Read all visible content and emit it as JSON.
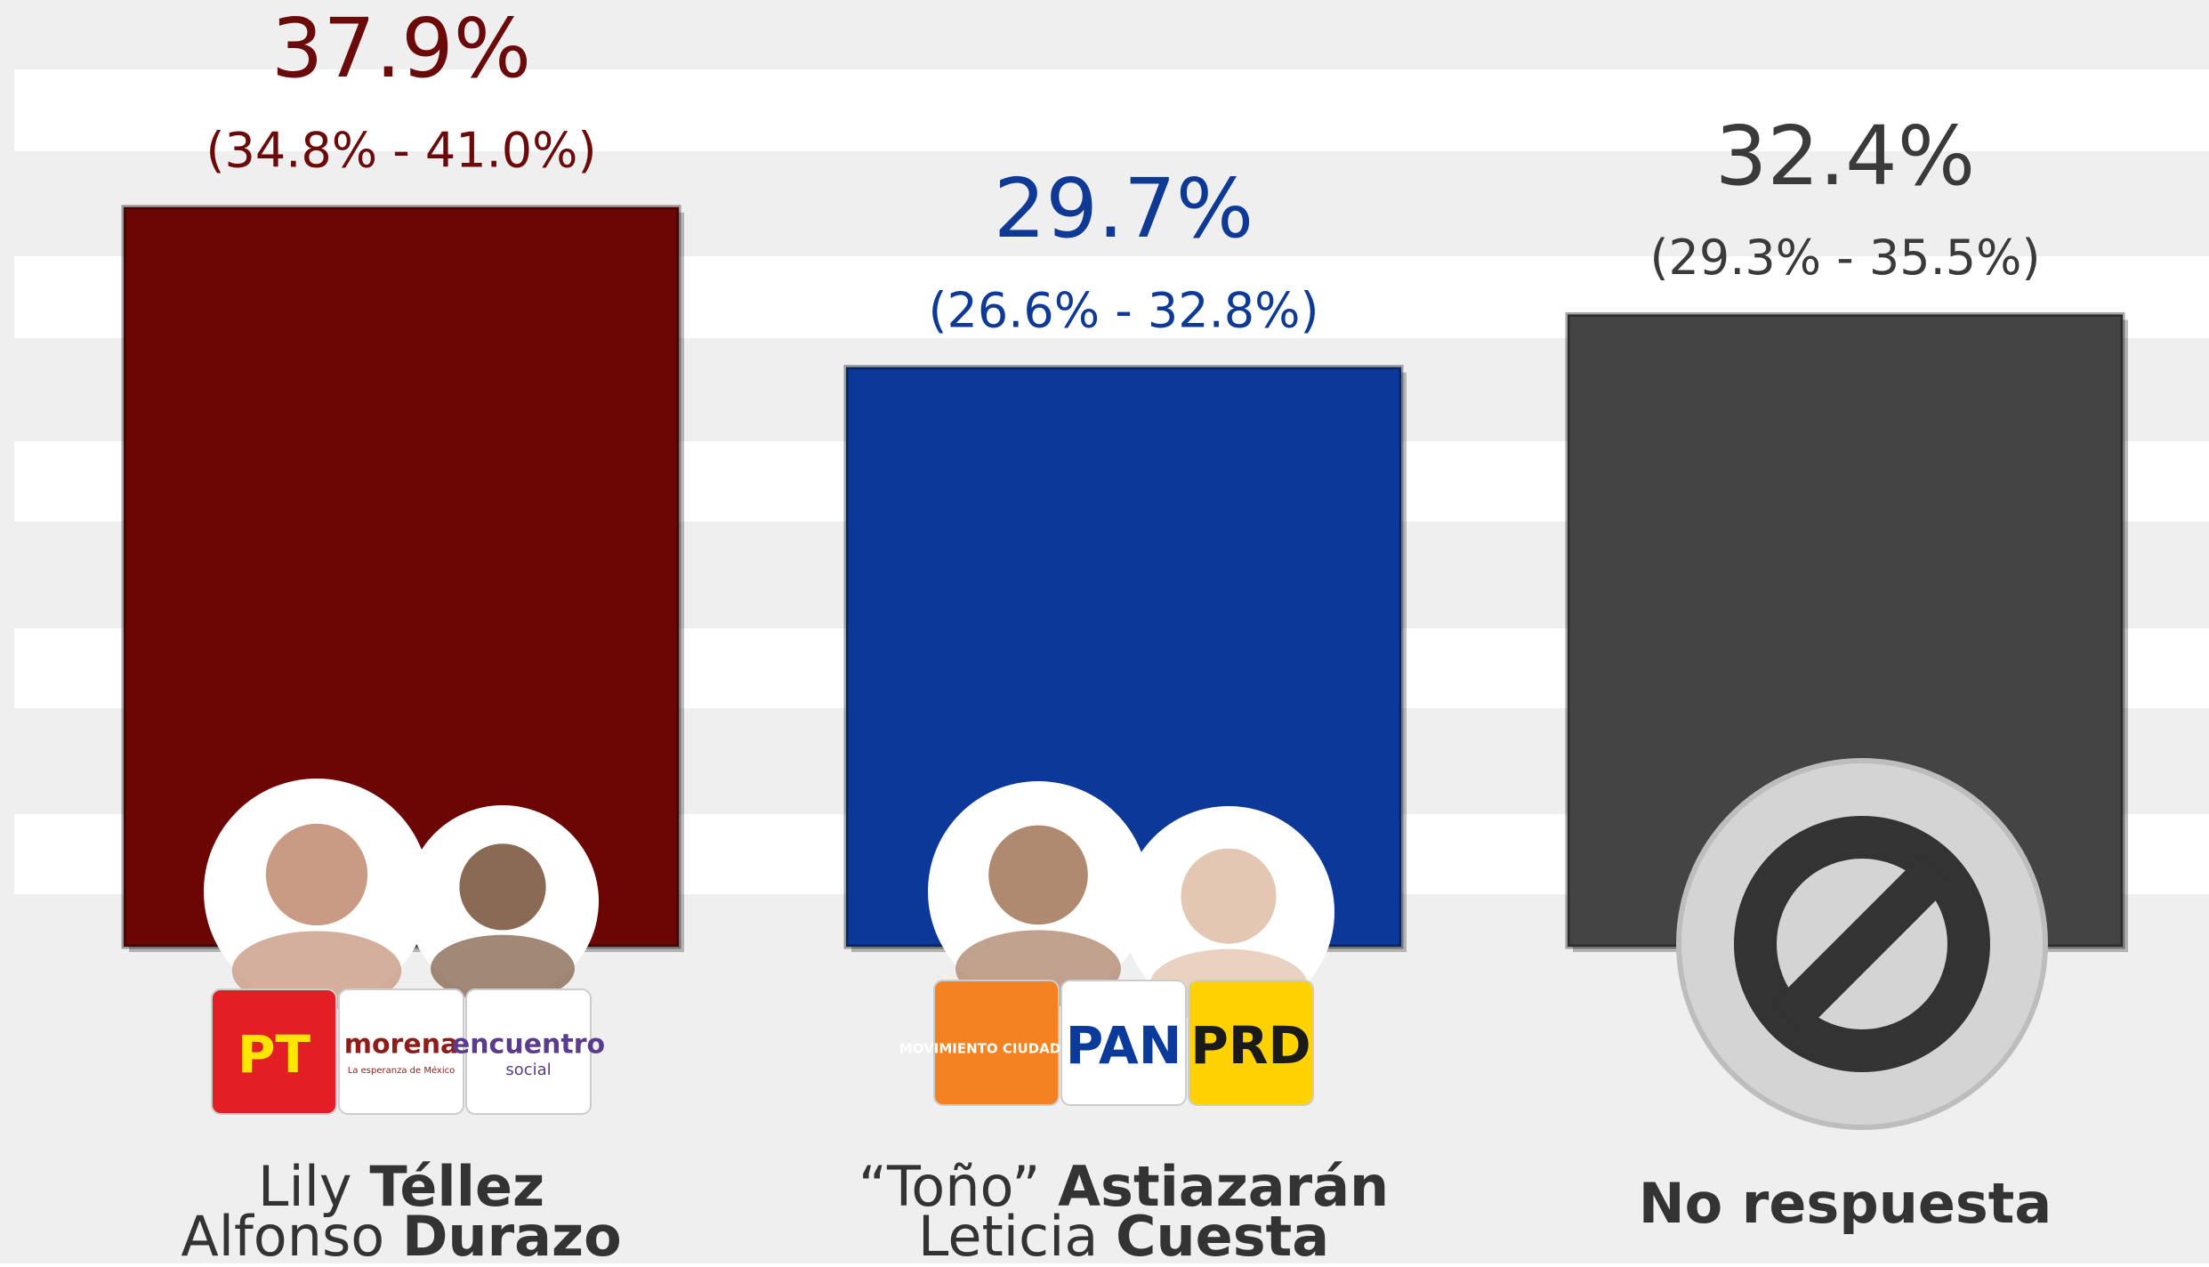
{
  "chart_data": {
    "type": "bar",
    "values": [
      37.9,
      29.7,
      32.4
    ],
    "value_labels": [
      "37.9%",
      "29.7%",
      "32.4%"
    ],
    "ranges": [
      "(34.8% - 41.0%)",
      "(26.6% - 32.8%)",
      "(29.3% - 35.5%)"
    ],
    "colors": [
      "#6b0604",
      "#0c3899",
      "#444444"
    ],
    "label_colors": [
      "#6b0a0a",
      "#0e3a96",
      "#3a3a3a"
    ],
    "categories": [
      [
        {
          "light": "Lily",
          "bold": "Téllez"
        },
        {
          "light": "Alfonso",
          "bold": "Durazo"
        }
      ],
      [
        {
          "light": "“Toño”",
          "bold": "Astiazarán"
        },
        {
          "light": "Leticia",
          "bold": "Cuesta"
        }
      ],
      [
        {
          "bold": "No respuesta"
        }
      ]
    ],
    "parties": [
      [
        {
          "text": "PT",
          "bg": "#e31e24",
          "fg": "#ffe600"
        },
        {
          "text": "morena",
          "sub": "La esperanza de México",
          "bg": "#ffffff",
          "fg": "#8c1d18"
        },
        {
          "text": "encuentro",
          "sub": "social",
          "bg": "#ffffff",
          "fg": "#5a3b8c"
        }
      ],
      [
        {
          "text": "MOVIMIENTO CIUDADANO",
          "bg": "#f58220",
          "fg": "#ffffff"
        },
        {
          "text": "PAN",
          "bg": "#ffffff",
          "fg": "#0b3b9a"
        },
        {
          "text": "PRD",
          "bg": "#ffd200",
          "fg": "#1a1a1a"
        }
      ],
      []
    ]
  }
}
